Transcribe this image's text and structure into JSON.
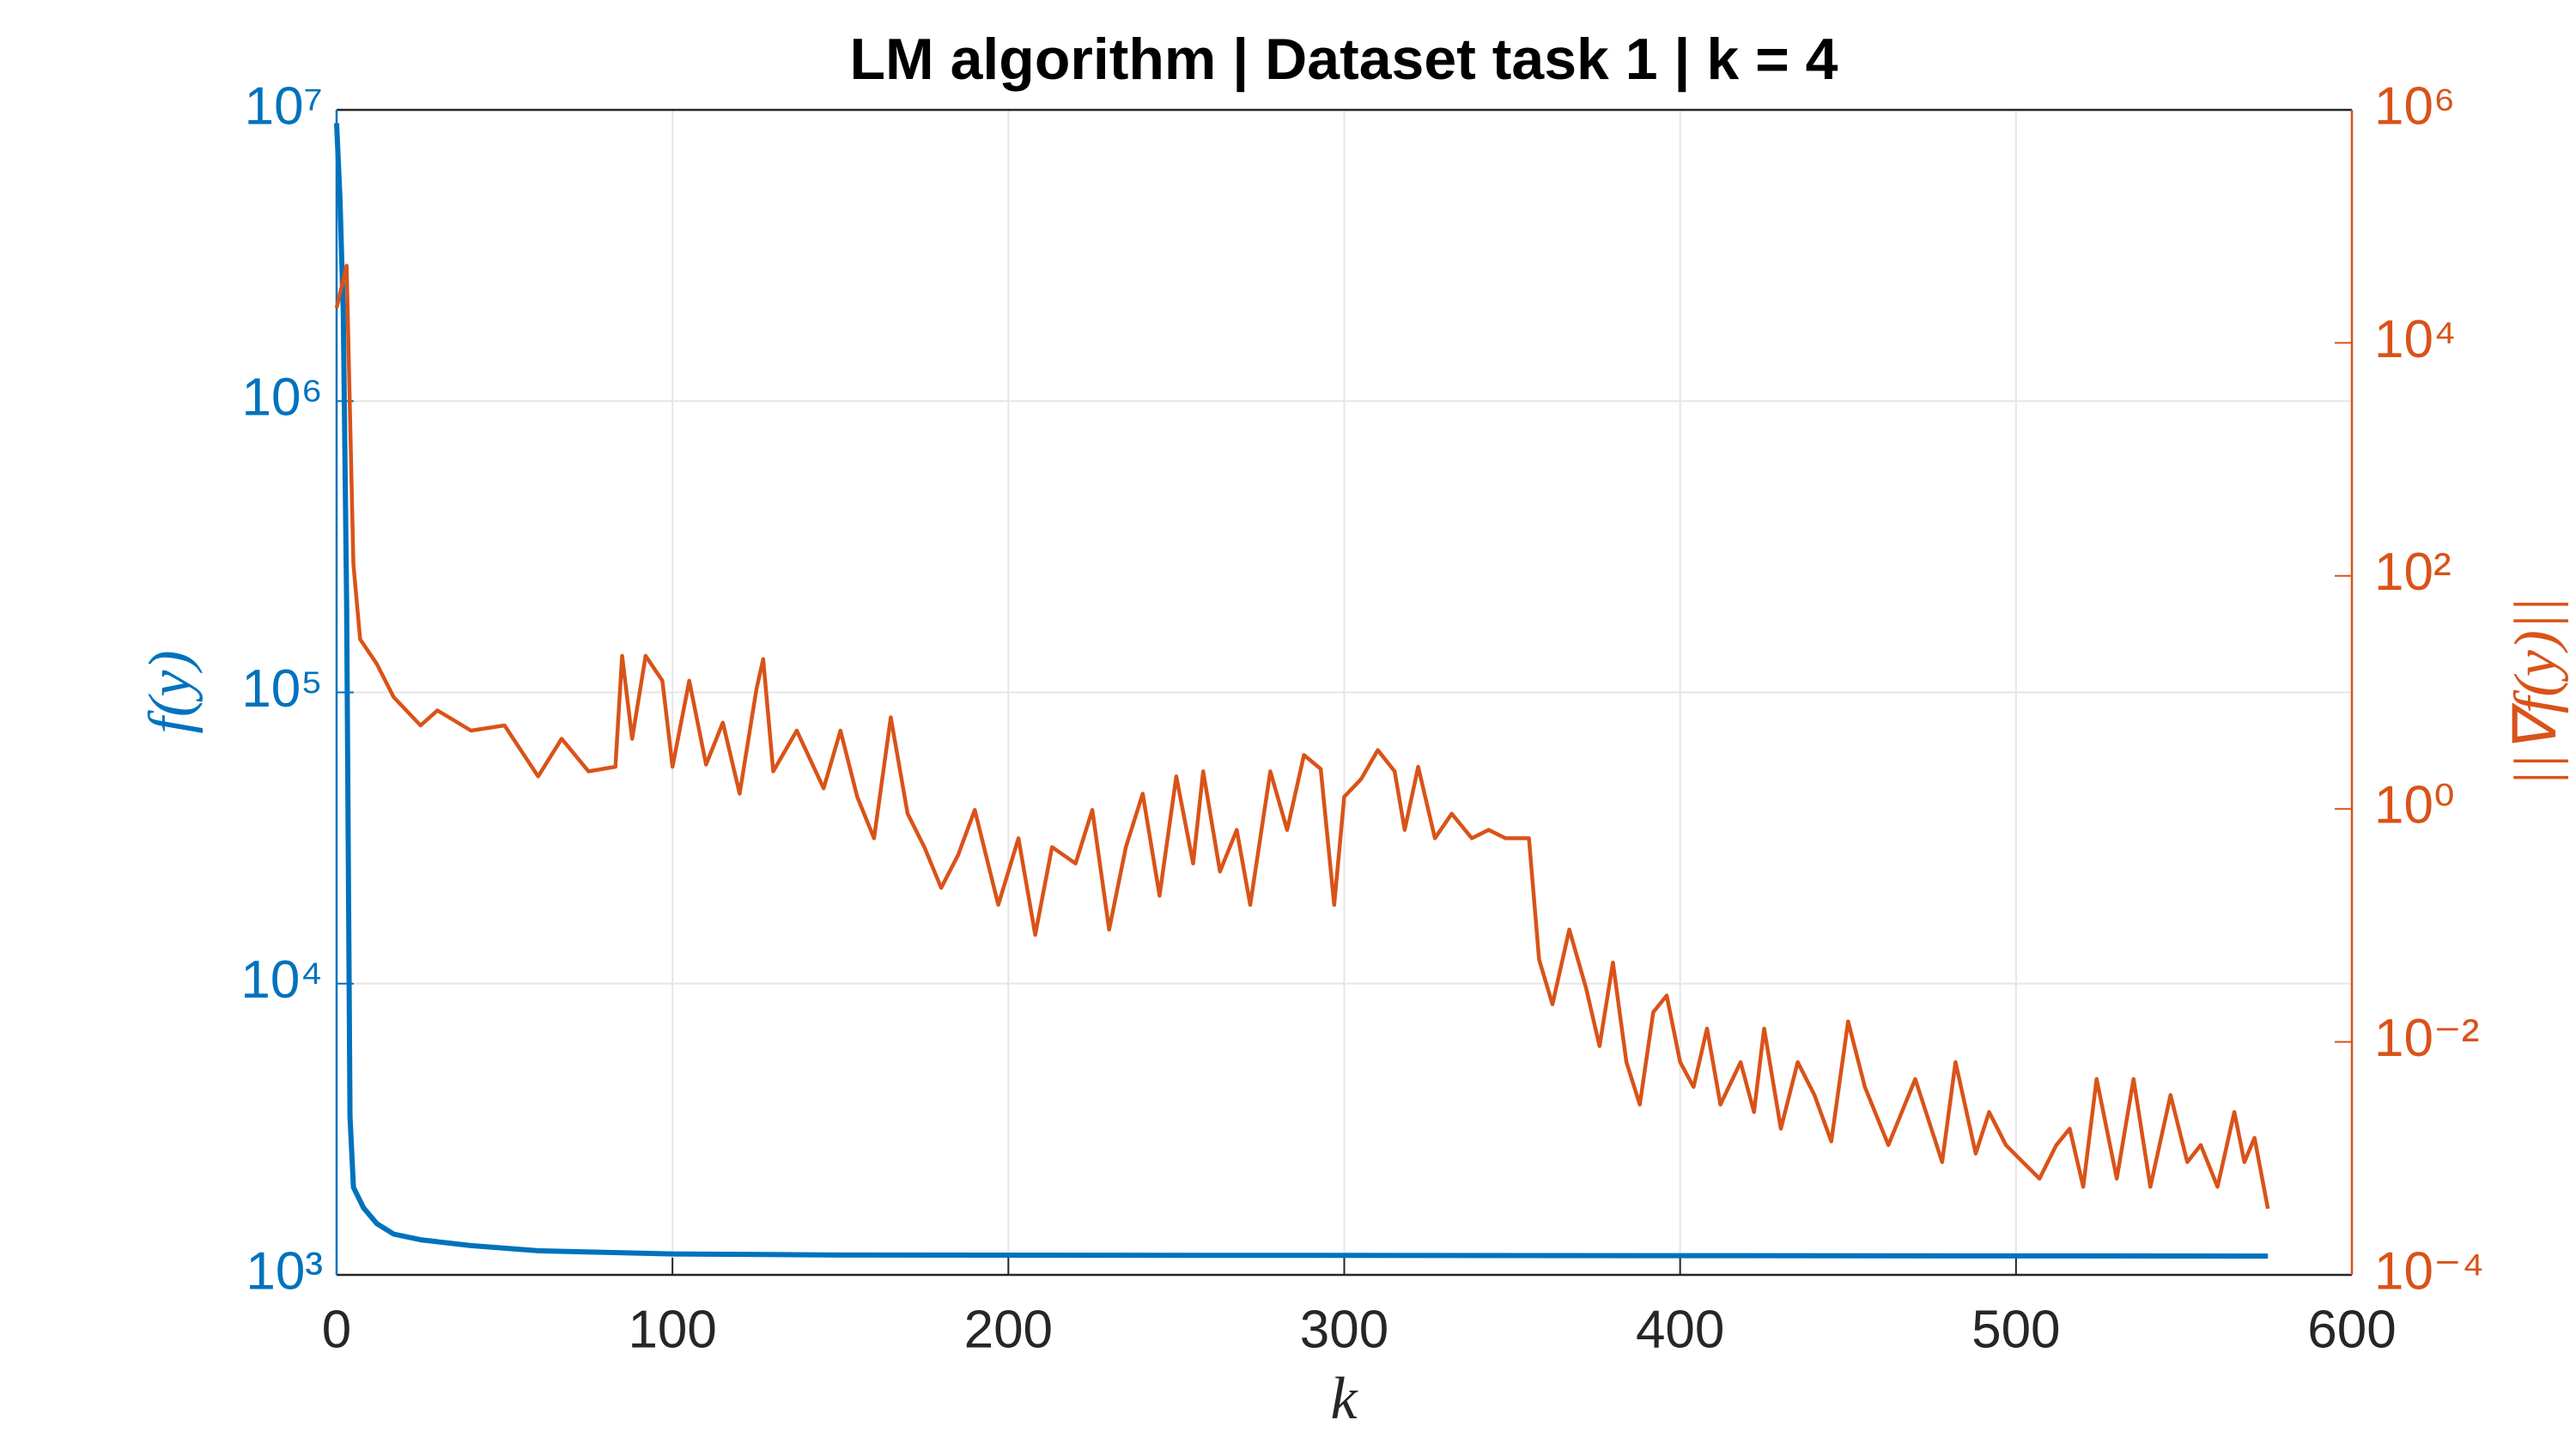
{
  "chart_data": {
    "type": "line",
    "title": "LM algorithm | Dataset task 1 | k = 4",
    "xlabel": "k",
    "ylabel": "f(y)",
    "y2label": "||∇f(y)||",
    "xlim": [
      0,
      600
    ],
    "xticks": [
      0,
      100,
      200,
      300,
      400,
      500,
      600
    ],
    "yscale": "log",
    "y2scale": "log",
    "ylim": [
      1000,
      10000000
    ],
    "yticks": [
      {
        "value": 1000,
        "label": "10³"
      },
      {
        "value": 10000,
        "label": "10⁴"
      },
      {
        "value": 100000,
        "label": "10⁵"
      },
      {
        "value": 1000000,
        "label": "10⁶"
      },
      {
        "value": 10000000,
        "label": "10⁷"
      }
    ],
    "y2lim": [
      0.0001,
      1000000
    ],
    "y2ticks": [
      {
        "value": 0.0001,
        "label": "10⁻⁴"
      },
      {
        "value": 0.01,
        "label": "10⁻²"
      },
      {
        "value": 1,
        "label": "10⁰"
      },
      {
        "value": 100,
        "label": "10²"
      },
      {
        "value": 10000,
        "label": "10⁴"
      },
      {
        "value": 1000000,
        "label": "10⁶"
      }
    ],
    "grid": true,
    "series": [
      {
        "color": "#0072BD",
        "axis": "y",
        "x": [
          0,
          1,
          2,
          3,
          4,
          5,
          8,
          12,
          17,
          25,
          40,
          60,
          100,
          150,
          575
        ],
        "values": [
          9000000,
          5000000,
          2000000,
          200000,
          3500,
          2000,
          1700,
          1500,
          1380,
          1320,
          1260,
          1210,
          1180,
          1170,
          1160
        ]
      },
      {
        "color": "#D95319",
        "axis": "y2",
        "x": [
          0,
          3,
          5,
          7,
          12,
          17,
          25,
          30,
          40,
          50,
          60,
          67,
          75,
          83,
          85,
          88,
          92,
          97,
          100,
          105,
          110,
          115,
          120,
          125,
          127,
          130,
          137,
          145,
          150,
          155,
          160,
          165,
          170,
          175,
          180,
          185,
          190,
          197,
          203,
          208,
          213,
          220,
          225,
          230,
          235,
          240,
          245,
          250,
          255,
          258,
          263,
          268,
          272,
          278,
          283,
          288,
          293,
          297,
          300,
          305,
          310,
          315,
          318,
          322,
          327,
          332,
          338,
          343,
          348,
          355,
          358,
          362,
          367,
          372,
          376,
          380,
          384,
          388,
          392,
          396,
          400,
          404,
          408,
          412,
          418,
          422,
          425,
          430,
          435,
          440,
          445,
          450,
          455,
          462,
          470,
          478,
          482,
          488,
          492,
          497,
          502,
          507,
          512,
          516,
          520,
          524,
          530,
          535,
          540,
          546,
          551,
          555,
          560,
          565,
          568,
          571,
          575
        ],
        "values": [
          20000,
          46000,
          125,
          28.6,
          17.5,
          9.1,
          5.2,
          7.0,
          4.7,
          5.2,
          1.9,
          4.0,
          2.1,
          2.3,
          20.6,
          4.0,
          20.6,
          12.6,
          2.3,
          12.6,
          2.4,
          5.5,
          1.35,
          10.7,
          19.3,
          2.1,
          4.7,
          1.5,
          4.7,
          1.27,
          0.56,
          6.1,
          0.91,
          0.47,
          0.21,
          0.4,
          0.98,
          0.15,
          0.56,
          0.083,
          0.47,
          0.34,
          0.98,
          0.092,
          0.47,
          1.35,
          0.18,
          1.9,
          0.34,
          2.1,
          0.29,
          0.66,
          0.15,
          2.1,
          0.66,
          2.9,
          2.2,
          0.15,
          1.27,
          1.8,
          3.2,
          2.1,
          0.66,
          2.3,
          0.56,
          0.91,
          0.56,
          0.66,
          0.56,
          0.56,
          0.051,
          0.021,
          0.092,
          0.029,
          0.0092,
          0.048,
          0.0067,
          0.0029,
          0.018,
          0.025,
          0.0067,
          0.0041,
          0.013,
          0.0029,
          0.0067,
          0.0025,
          0.013,
          0.0018,
          0.0067,
          0.0035,
          0.0014,
          0.015,
          0.0041,
          0.0013,
          0.0048,
          0.00093,
          0.0067,
          0.0011,
          0.0025,
          0.0013,
          0.00093,
          0.00067,
          0.0013,
          0.0018,
          0.00057,
          0.0048,
          0.00067,
          0.0048,
          0.00057,
          0.0035,
          0.00093,
          0.0013,
          0.00057,
          0.0025,
          0.00093,
          0.0015,
          0.00037
        ]
      }
    ]
  }
}
